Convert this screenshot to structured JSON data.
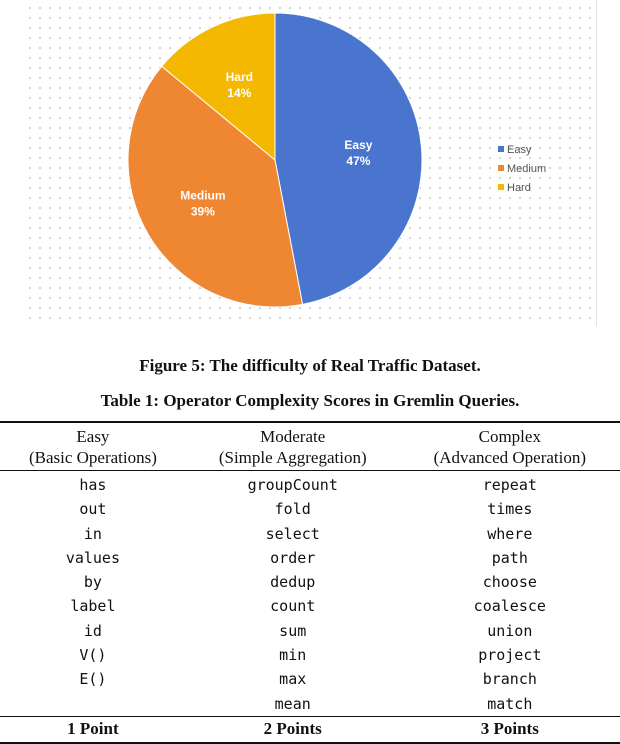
{
  "chart_data": {
    "type": "pie",
    "categories": [
      "Easy",
      "Medium",
      "Hard"
    ],
    "values": [
      47,
      39,
      14
    ],
    "value_labels": [
      "47%",
      "39%",
      "14%"
    ],
    "colors": [
      "#4a75cf",
      "#ef8632",
      "#f5b800"
    ],
    "legend_placement": "right",
    "title": ""
  },
  "figure_caption": "Figure 5: The difficulty of Real Traffic Dataset.",
  "table_caption": "Table 1: Operator Complexity Scores in Gremlin Queries.",
  "table": {
    "headers": [
      {
        "line1": "Easy",
        "line2": "(Basic Operations)"
      },
      {
        "line1": "Moderate",
        "line2": "(Simple Aggregation)"
      },
      {
        "line1": "Complex",
        "line2": "(Advanced Operation)"
      }
    ],
    "rows": [
      [
        "has",
        "groupCount",
        "repeat"
      ],
      [
        "out",
        "fold",
        "times"
      ],
      [
        "in",
        "select",
        "where"
      ],
      [
        "values",
        "order",
        "path"
      ],
      [
        "by",
        "dedup",
        "choose"
      ],
      [
        "label",
        "count",
        "coalesce"
      ],
      [
        "id",
        "sum",
        "union"
      ],
      [
        "V()",
        "min",
        "project"
      ],
      [
        "E()",
        "max",
        "branch"
      ],
      [
        "",
        "mean",
        "match"
      ]
    ],
    "footer": [
      "1 Point",
      "2 Points",
      "3 Points"
    ]
  }
}
